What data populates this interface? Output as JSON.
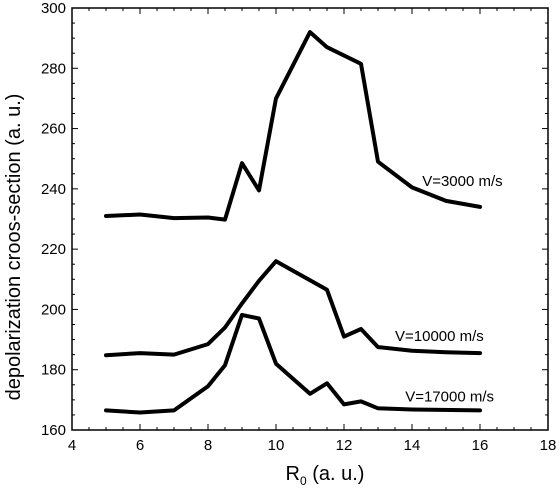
{
  "chart_data": {
    "type": "line",
    "xlabel": "R",
    "xlabel_sub": "0",
    "xlabel_units": " (a. u.)",
    "ylabel": "depolarization croos-section  (a. u.)",
    "xlim": [
      4,
      18
    ],
    "ylim": [
      160,
      300
    ],
    "xticks": [
      4,
      6,
      8,
      10,
      12,
      14,
      16,
      18
    ],
    "yticks": [
      160,
      180,
      200,
      220,
      240,
      260,
      280,
      300
    ],
    "grid": false,
    "series": [
      {
        "name": "V=3000 m/s",
        "x": [
          5,
          6,
          7,
          8,
          8.5,
          9,
          9.5,
          10,
          11,
          11.5,
          12.5,
          13,
          14,
          15,
          16
        ],
        "y": [
          231,
          231.5,
          230.3,
          230.5,
          229.8,
          248.5,
          239.5,
          270,
          292,
          287,
          281.5,
          249,
          240.5,
          236,
          234
        ]
      },
      {
        "name": "V=10000 m/s",
        "x": [
          5,
          6,
          7,
          8,
          8.5,
          9,
          9.5,
          10,
          11.5,
          12,
          12.5,
          13,
          14,
          15,
          16
        ],
        "y": [
          184.8,
          185.5,
          185,
          188.5,
          194,
          202,
          209.5,
          216,
          206.5,
          191,
          193.5,
          187.5,
          186.3,
          185.8,
          185.5
        ]
      },
      {
        "name": "V=17000 m/s",
        "x": [
          5,
          6,
          7,
          8,
          8.5,
          9,
          9.5,
          10,
          11,
          11.5,
          12,
          12.5,
          13,
          14,
          16
        ],
        "y": [
          166.5,
          165.8,
          166.5,
          174.5,
          181.5,
          198.2,
          197,
          182,
          172,
          175.5,
          168.5,
          169.5,
          167.2,
          166.8,
          166.5
        ]
      }
    ],
    "annotations": [
      {
        "text": "V=3000 m/s",
        "x": 14.3,
        "y": 241
      },
      {
        "text": "V=10000 m/s",
        "x": 13.5,
        "y": 189.5
      },
      {
        "text": "V=17000 m/s",
        "x": 13.8,
        "y": 169.5
      }
    ]
  }
}
